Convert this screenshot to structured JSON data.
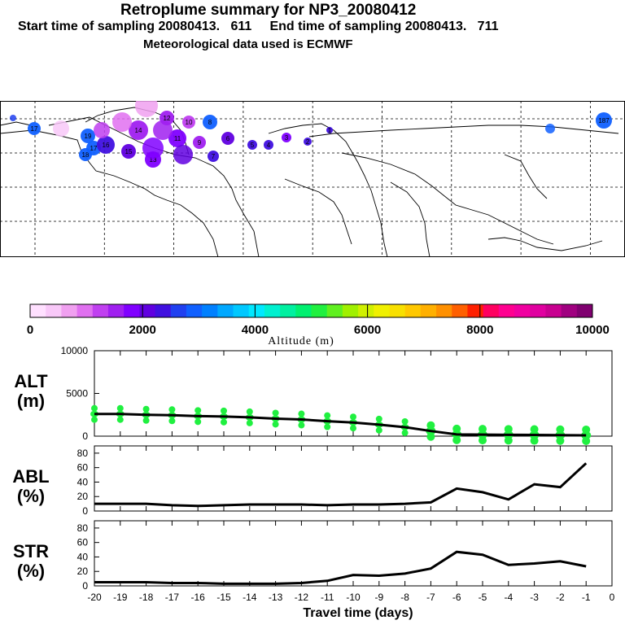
{
  "header": {
    "title": "Retroplume summary for NP3_20080412",
    "sampling": "Start time of sampling 20080413.   611     End time of sampling 20080413.   711",
    "met": "Meteorological data used is ECMWF"
  },
  "map": {
    "plume_labels": [
      "17",
      "16",
      "19",
      "18",
      "17",
      "16",
      "15",
      "14",
      "13",
      "12",
      "11",
      "10",
      "9",
      "8",
      "7",
      "6",
      "5",
      "4",
      "3",
      "2",
      "1"
    ],
    "labels_shown": [
      "17",
      "19",
      "18",
      "17",
      "16",
      "15",
      "14",
      "13",
      "12",
      "11",
      "10",
      "9",
      "8",
      "7",
      "6",
      "5",
      "4",
      "3",
      "2",
      "1",
      "187"
    ],
    "colors": {
      "land_line": "#000000",
      "grid": "#000000"
    }
  },
  "colorbar": {
    "ticks": [
      "0",
      "2000",
      "4000",
      "6000",
      "8000",
      "10000"
    ],
    "label": "Altitude (m)",
    "colors": [
      "#ffe0ff",
      "#f8c8f8",
      "#f0a0f0",
      "#e070f0",
      "#c040f0",
      "#a020f0",
      "#8000ff",
      "#6000e0",
      "#4010e0",
      "#2040f0",
      "#1060ff",
      "#0080ff",
      "#00a8ff",
      "#00c8ff",
      "#00e8ff",
      "#00f0d0",
      "#00f0a0",
      "#00f070",
      "#20f040",
      "#60f020",
      "#a0f000",
      "#d0f000",
      "#f0f000",
      "#f8e000",
      "#ffc800",
      "#ffb000",
      "#ff9000",
      "#ff6000",
      "#ff2000",
      "#ff0060",
      "#ff0090",
      "#f000a0",
      "#e000a0",
      "#c80090",
      "#a00080",
      "#800070"
    ]
  },
  "chart_data": [
    {
      "type": "line",
      "name": "ALT",
      "ylabel": "ALT\n(m)",
      "ylabel_lines": [
        "ALT",
        "(m)"
      ],
      "yticks": [
        "10000",
        "5000",
        "0"
      ],
      "ylim": [
        0,
        10000
      ],
      "x": [
        -20,
        -19,
        -18,
        -17,
        -16,
        -15,
        -14,
        -13,
        -12,
        -11,
        -10,
        -9,
        -8,
        -7,
        -6,
        -5,
        -4,
        -3,
        -2,
        -1
      ],
      "values": [
        2600,
        2600,
        2500,
        2450,
        2350,
        2300,
        2200,
        2050,
        1950,
        1750,
        1600,
        1350,
        1050,
        600,
        200,
        180,
        160,
        140,
        120,
        100
      ],
      "scatter_color": "#20f040"
    },
    {
      "type": "line",
      "name": "ABL",
      "ylabel_lines": [
        "ABL",
        "(%)"
      ],
      "yticks": [
        "80",
        "60",
        "40",
        "20",
        "0"
      ],
      "ylim": [
        0,
        90
      ],
      "x": [
        -20,
        -19,
        -18,
        -17,
        -16,
        -15,
        -14,
        -13,
        -12,
        -11,
        -10,
        -9,
        -8,
        -7,
        -6,
        -5,
        -4,
        -3,
        -2,
        -1
      ],
      "values": [
        10,
        10,
        10,
        8,
        7,
        8,
        9,
        9,
        9,
        8,
        9,
        9,
        10,
        12,
        31,
        26,
        16,
        37,
        33,
        66
      ]
    },
    {
      "type": "line",
      "name": "STR",
      "ylabel_lines": [
        "STR",
        "(%)"
      ],
      "yticks": [
        "80",
        "60",
        "40",
        "20",
        "0"
      ],
      "ylim": [
        0,
        90
      ],
      "x": [
        -20,
        -19,
        -18,
        -17,
        -16,
        -15,
        -14,
        -13,
        -12,
        -11,
        -10,
        -9,
        -8,
        -7,
        -6,
        -5,
        -4,
        -3,
        -2,
        -1
      ],
      "values": [
        5,
        5,
        5,
        4,
        4,
        3,
        3,
        3,
        4,
        7,
        15,
        14,
        17,
        24,
        47,
        43,
        29,
        31,
        34,
        27
      ],
      "xticks": [
        "-20",
        "-19",
        "-18",
        "-17",
        "-16",
        "-15",
        "-14",
        "-13",
        "-12",
        "-11",
        "-10",
        "-9",
        "-8",
        "-7",
        "-6",
        "-5",
        "-4",
        "-3",
        "-2",
        "-1",
        "0"
      ],
      "xlabel": "Travel time (days)"
    }
  ]
}
